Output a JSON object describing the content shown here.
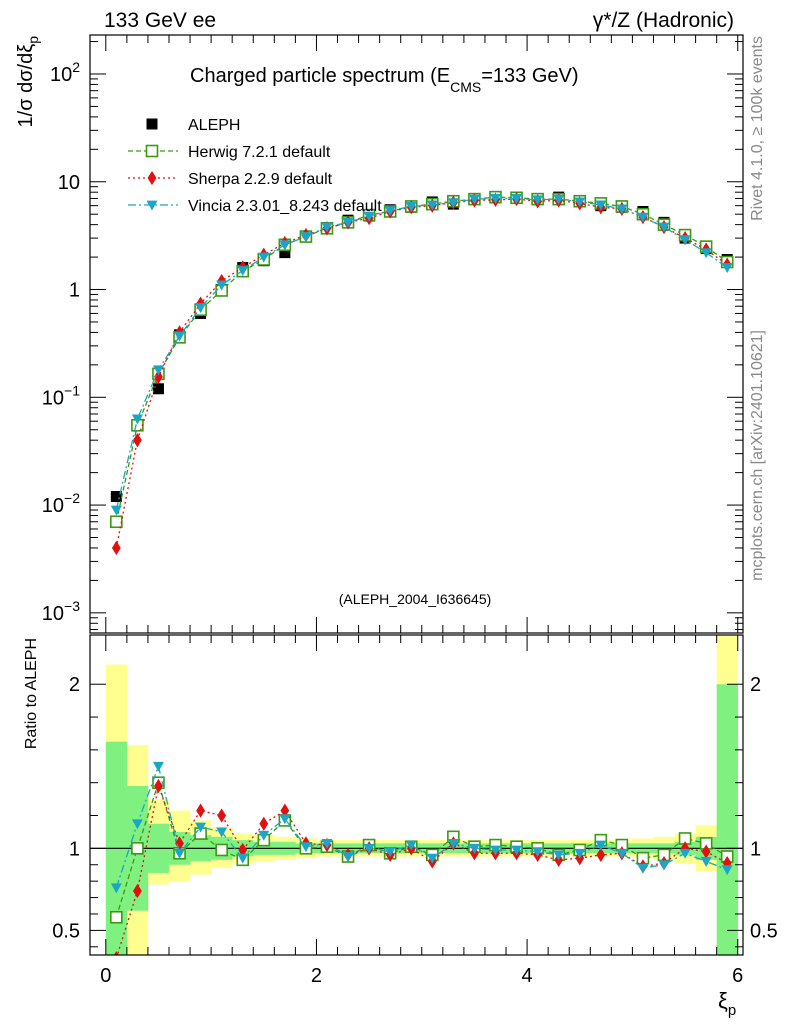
{
  "header": {
    "left": "133 GeV ee",
    "right": "γ*/Z (Hadronic)"
  },
  "side": {
    "rivet": "Rivet 4.1.0, ≥ 100k events",
    "mcplots": "mcplots.cern.ch [arXiv:2401.10621]"
  },
  "colors": {
    "aleph": "#000000",
    "herwig": "#3a9a10",
    "sherpa": "#e31010",
    "vincia": "#1aa6c6",
    "band_inner": "#80f080",
    "band_outer": "#ffff90"
  },
  "chart_data": [
    {
      "id": "main",
      "type": "scatter",
      "title": "Charged particle spectrum (E",
      "title_sub": "CMS",
      "title_end": "=133 GeV)",
      "ylabel": "1/σ  dσ/dξ",
      "ylabel_sub": "p",
      "yscale": "log",
      "ylim": [
        0.00065,
        230
      ],
      "xlim": [
        -0.15,
        6.05
      ],
      "yticks": [
        {
          "v": 0.001,
          "base": "10",
          "exp": "−3"
        },
        {
          "v": 0.01,
          "base": "10",
          "exp": "−2"
        },
        {
          "v": 0.1,
          "base": "10",
          "exp": "−1"
        },
        {
          "v": 1,
          "base": "1",
          "exp": ""
        },
        {
          "v": 10,
          "base": "10",
          "exp": ""
        },
        {
          "v": 100,
          "base": "10",
          "exp": "2"
        }
      ],
      "annotation": "(ALEPH_2004_I636645)",
      "legend": [
        "ALEPH",
        "Herwig 7.2.1 default",
        "Sherpa 2.2.9 default",
        "Vincia 2.3.01_8.243 default"
      ],
      "x": [
        0.1,
        0.3,
        0.5,
        0.7,
        0.9,
        1.1,
        1.3,
        1.5,
        1.7,
        1.9,
        2.1,
        2.3,
        2.5,
        2.7,
        2.9,
        3.1,
        3.3,
        3.5,
        3.7,
        3.9,
        4.1,
        4.3,
        4.5,
        4.7,
        4.9,
        5.1,
        5.3,
        5.5,
        5.7,
        5.9
      ],
      "series": [
        {
          "name": "ALEPH",
          "values": [
            0.012,
            0.055,
            0.12,
            0.38,
            0.6,
            1.0,
            1.6,
            1.85,
            2.2,
            3.1,
            3.7,
            4.4,
            4.8,
            5.5,
            5.8,
            6.5,
            6.2,
            6.9,
            7.1,
            7.1,
            6.9,
            7.2,
            6.7,
            6.0,
            5.8,
            5.3,
            4.2,
            3.0,
            2.4,
            1.9
          ]
        },
        {
          "name": "Herwig 7.2.1 default",
          "values": [
            0.007,
            0.055,
            0.165,
            0.36,
            0.65,
            0.98,
            1.48,
            1.9,
            2.6,
            3.1,
            3.7,
            4.2,
            4.9,
            5.3,
            5.9,
            6.2,
            6.6,
            6.9,
            7.2,
            7.1,
            6.9,
            6.9,
            6.6,
            6.3,
            5.9,
            5.0,
            4.0,
            3.2,
            2.5,
            1.8
          ]
        },
        {
          "name": "Sherpa 2.2.9 default",
          "values": [
            0.004,
            0.04,
            0.155,
            0.4,
            0.74,
            1.2,
            1.6,
            2.1,
            2.7,
            3.2,
            3.7,
            4.2,
            4.6,
            5.3,
            5.8,
            6.0,
            6.4,
            6.7,
            6.8,
            6.9,
            6.6,
            6.7,
            6.3,
            5.8,
            5.6,
            4.7,
            3.8,
            3.0,
            2.35,
            1.7
          ]
        },
        {
          "name": "Vincia 2.3.01_8.243 default",
          "values": [
            0.009,
            0.063,
            0.18,
            0.37,
            0.68,
            1.1,
            1.5,
            2.0,
            2.6,
            3.1,
            3.8,
            4.2,
            4.8,
            5.4,
            5.9,
            6.1,
            6.4,
            6.9,
            7.0,
            7.0,
            6.8,
            6.9,
            6.5,
            6.1,
            5.6,
            4.7,
            3.8,
            2.9,
            2.2,
            1.6
          ]
        }
      ]
    },
    {
      "id": "ratio",
      "type": "scatter",
      "ylabel": "Ratio to ALEPH",
      "xlabel": "ξ",
      "xlabel_sub": "p",
      "ylim": [
        0.35,
        2.3
      ],
      "xlim": [
        -0.15,
        6.05
      ],
      "xticks": [
        0,
        2,
        4,
        6
      ],
      "yticks": [
        0.5,
        1,
        2
      ],
      "band_edges": [
        0,
        0.2,
        0.4,
        0.6,
        0.8,
        1.0,
        1.2,
        1.4,
        1.6,
        1.8,
        2.0,
        2.2,
        2.4,
        2.6,
        2.8,
        3.0,
        3.2,
        3.4,
        3.6,
        3.8,
        4.0,
        4.2,
        4.4,
        4.6,
        4.8,
        5.0,
        5.2,
        5.4,
        5.6,
        5.8,
        6.0
      ],
      "band_inner": [
        [
          0.35,
          1.65
        ],
        [
          0.62,
          1.38
        ],
        [
          0.85,
          1.15
        ],
        [
          0.9,
          1.1
        ],
        [
          0.92,
          1.08
        ],
        [
          0.93,
          1.07
        ],
        [
          0.95,
          1.05
        ],
        [
          0.96,
          1.04
        ],
        [
          0.96,
          1.04
        ],
        [
          0.97,
          1.03
        ],
        [
          0.97,
          1.03
        ],
        [
          0.97,
          1.03
        ],
        [
          0.97,
          1.03
        ],
        [
          0.97,
          1.03
        ],
        [
          0.97,
          1.03
        ],
        [
          0.97,
          1.03
        ],
        [
          0.97,
          1.03
        ],
        [
          0.97,
          1.03
        ],
        [
          0.97,
          1.03
        ],
        [
          0.97,
          1.03
        ],
        [
          0.97,
          1.03
        ],
        [
          0.97,
          1.03
        ],
        [
          0.97,
          1.03
        ],
        [
          0.97,
          1.03
        ],
        [
          0.97,
          1.03
        ],
        [
          0.97,
          1.03
        ],
        [
          0.97,
          1.03
        ],
        [
          0.96,
          1.04
        ],
        [
          0.93,
          1.07
        ],
        [
          0.35,
          2.0
        ]
      ],
      "band_outer": [
        [
          0.35,
          2.12
        ],
        [
          0.35,
          1.63
        ],
        [
          0.78,
          1.3
        ],
        [
          0.8,
          1.23
        ],
        [
          0.84,
          1.17
        ],
        [
          0.88,
          1.13
        ],
        [
          0.91,
          1.09
        ],
        [
          0.92,
          1.08
        ],
        [
          0.93,
          1.07
        ],
        [
          0.94,
          1.06
        ],
        [
          0.95,
          1.05
        ],
        [
          0.95,
          1.05
        ],
        [
          0.95,
          1.05
        ],
        [
          0.95,
          1.05
        ],
        [
          0.95,
          1.05
        ],
        [
          0.95,
          1.05
        ],
        [
          0.95,
          1.05
        ],
        [
          0.95,
          1.05
        ],
        [
          0.95,
          1.05
        ],
        [
          0.95,
          1.05
        ],
        [
          0.95,
          1.05
        ],
        [
          0.95,
          1.05
        ],
        [
          0.95,
          1.05
        ],
        [
          0.95,
          1.05
        ],
        [
          0.95,
          1.05
        ],
        [
          0.94,
          1.06
        ],
        [
          0.93,
          1.07
        ],
        [
          0.91,
          1.09
        ],
        [
          0.86,
          1.14
        ],
        [
          0.35,
          2.3
        ]
      ],
      "series": [
        {
          "name": "Herwig 7.2.1 default",
          "values": [
            0.58,
            1.0,
            1.4,
            0.97,
            1.09,
            0.99,
            0.93,
            1.05,
            1.17,
            1.0,
            1.01,
            0.95,
            1.02,
            0.97,
            1.01,
            0.96,
            1.07,
            1.01,
            1.02,
            1.01,
            1.0,
            0.96,
            0.99,
            1.05,
            1.02,
            0.94,
            0.96,
            1.06,
            1.03,
            0.95
          ]
        },
        {
          "name": "Sherpa 2.2.9 default",
          "values": [
            0.33,
            0.74,
            1.38,
            1.03,
            1.23,
            1.2,
            0.99,
            1.15,
            1.23,
            1.03,
            1.02,
            0.96,
            1.0,
            0.96,
            1.0,
            0.92,
            1.03,
            0.97,
            0.97,
            0.97,
            0.96,
            0.93,
            0.94,
            0.96,
            0.97,
            0.89,
            0.91,
            1.0,
            0.98,
            0.91
          ]
        },
        {
          "name": "Vincia 2.3.01_8.243 default",
          "values": [
            0.76,
            1.15,
            1.5,
            0.97,
            1.13,
            1.1,
            0.94,
            1.08,
            1.18,
            1.01,
            1.03,
            0.95,
            1.0,
            0.98,
            1.02,
            0.94,
            1.03,
            1.0,
            0.99,
            0.99,
            0.98,
            0.96,
            0.97,
            1.02,
            0.97,
            0.88,
            0.9,
            0.97,
            0.92,
            0.87
          ]
        }
      ]
    }
  ]
}
